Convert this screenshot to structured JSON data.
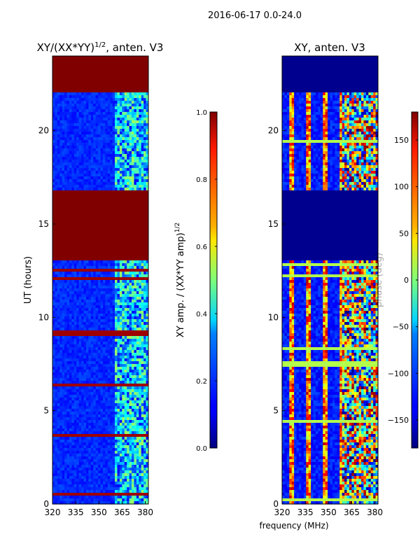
{
  "suptitle": "2016-06-17 0.0-24.0",
  "chart_data": [
    {
      "type": "heatmap",
      "title_main": "XY/(XX*YY)",
      "title_exp": "1/2",
      "title_suffix": ", anten. V3",
      "xlabel": "",
      "ylabel": "UT (hours)",
      "xlim": [
        320,
        382
      ],
      "ylim": [
        0,
        24
      ],
      "xticks": [
        "320",
        "335",
        "350",
        "365",
        "380"
      ],
      "yticks": [
        "0",
        "5",
        "10",
        "15",
        "20"
      ],
      "colorbar": {
        "label_main": "XY amp. / (XX*YY amp)",
        "label_exp": "1/2",
        "range": [
          0.0,
          1.0
        ],
        "ticks": [
          "0.0",
          "0.2",
          "0.4",
          "0.6",
          "0.8",
          "1.0"
        ]
      },
      "flagged_hours": [
        [
          13.0,
          16.8
        ],
        [
          22.0,
          24.0
        ]
      ]
    },
    {
      "type": "heatmap",
      "title": "XY, anten. V3",
      "xlabel": "frequency (MHz)",
      "ylabel": "",
      "xlim": [
        320,
        382
      ],
      "ylim": [
        0,
        24
      ],
      "xticks": [
        "320",
        "335",
        "350",
        "365",
        "380"
      ],
      "yticks": [
        "0",
        "5",
        "10",
        "15",
        "20"
      ],
      "colorbar": {
        "label": "phase (deg)",
        "range": [
          -180,
          180
        ],
        "ticks": [
          "−150",
          "−100",
          "−50",
          "0",
          "50",
          "100",
          "150"
        ]
      },
      "flagged_hours": [
        [
          13.0,
          16.8
        ],
        [
          22.0,
          24.0
        ]
      ]
    }
  ],
  "colors": {
    "flagged_high": "#800000",
    "flagged_low": "#00008f"
  }
}
